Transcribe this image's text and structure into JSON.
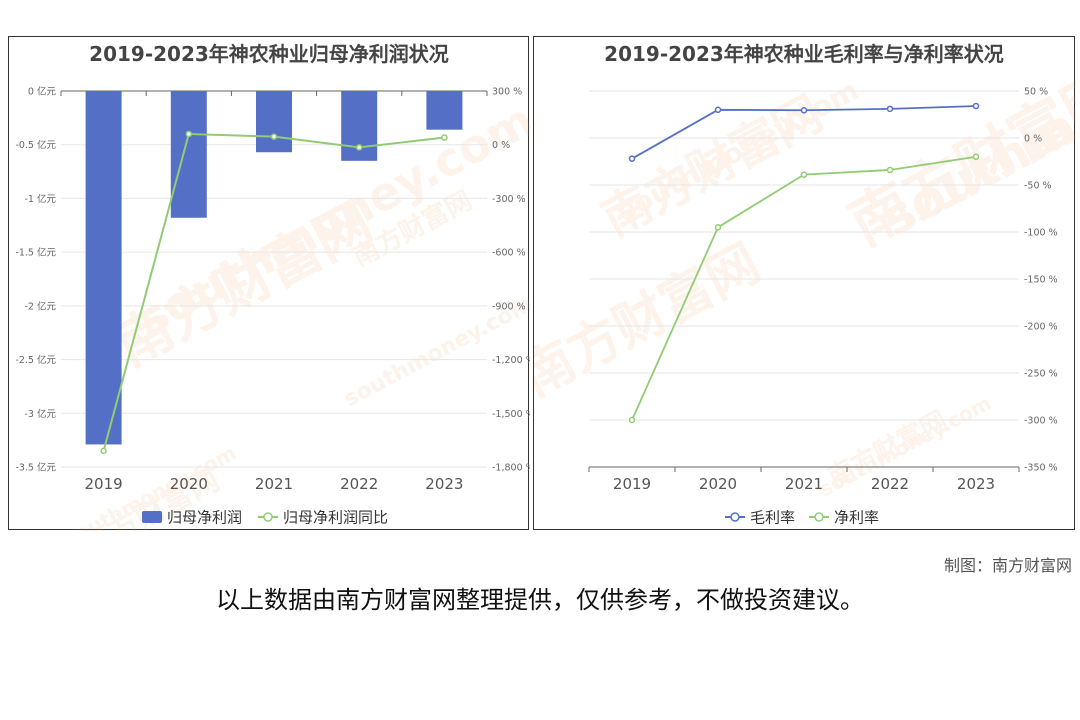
{
  "chart_data": [
    {
      "type": "bar",
      "title": "2019-2023年神农种业归母净利润状况",
      "categories": [
        "2019",
        "2020",
        "2021",
        "2022",
        "2023"
      ],
      "series": [
        {
          "name": "归母净利润",
          "type": "bar",
          "axis": "left",
          "color": "#5470c6",
          "values": [
            -3.29,
            -1.18,
            -0.57,
            -0.65,
            -0.36
          ]
        },
        {
          "name": "归母净利润同比",
          "type": "line",
          "axis": "right",
          "color": "#91cc75",
          "values": [
            -1710,
            60,
            45,
            -15,
            40
          ]
        }
      ],
      "y_left": {
        "ylim": [
          -3.5,
          0
        ],
        "ticks": [
          0,
          -0.5,
          -1,
          -1.5,
          -2,
          -2.5,
          -3,
          -3.5
        ],
        "tick_labels": [
          "0 亿元",
          "-0.5 亿元",
          "-1 亿元",
          "-1.5 亿元",
          "-2 亿元",
          "-2.5 亿元",
          "-3 亿元",
          "-3.5 亿元"
        ]
      },
      "y_right": {
        "ylim": [
          -1800,
          300
        ],
        "ticks": [
          300,
          0,
          -300,
          -600,
          -900,
          -1200,
          -1500,
          -1800
        ],
        "tick_labels": [
          "300 %",
          "0 %",
          "-300 %",
          "-600 %",
          "-900 %",
          "-1,200 %",
          "-1,500 %",
          "-1,800 %"
        ]
      },
      "grid": true,
      "legend": "bottom"
    },
    {
      "type": "line",
      "title": "2019-2023年神农种业毛利率与净利率状况",
      "categories": [
        "2019",
        "2020",
        "2021",
        "2022",
        "2023"
      ],
      "series": [
        {
          "name": "毛利率",
          "color": "#5470c6",
          "values": [
            -22,
            30,
            29.5,
            31,
            34
          ]
        },
        {
          "name": "净利率",
          "color": "#91cc75",
          "values": [
            -300,
            -95,
            -39,
            -34,
            -20
          ]
        }
      ],
      "y_right": {
        "ylim": [
          -350,
          50
        ],
        "ticks": [
          50,
          0,
          -50,
          -100,
          -150,
          -200,
          -250,
          -300,
          -350
        ],
        "tick_labels": [
          "50 %",
          "0 %",
          "-50 %",
          "-100 %",
          "-150 %",
          "-200 %",
          "-250 %",
          "-300 %",
          "-350 %"
        ]
      },
      "grid": true,
      "legend": "bottom"
    }
  ],
  "source_credit": "制图：南方财富网",
  "disclaimer": "以上数据由南方财富网整理提供，仅供参考，不做投资建议。",
  "watermark": {
    "text_cn": "南方财富网",
    "text_en": "southmoney.com",
    "color": "#f4a460"
  }
}
